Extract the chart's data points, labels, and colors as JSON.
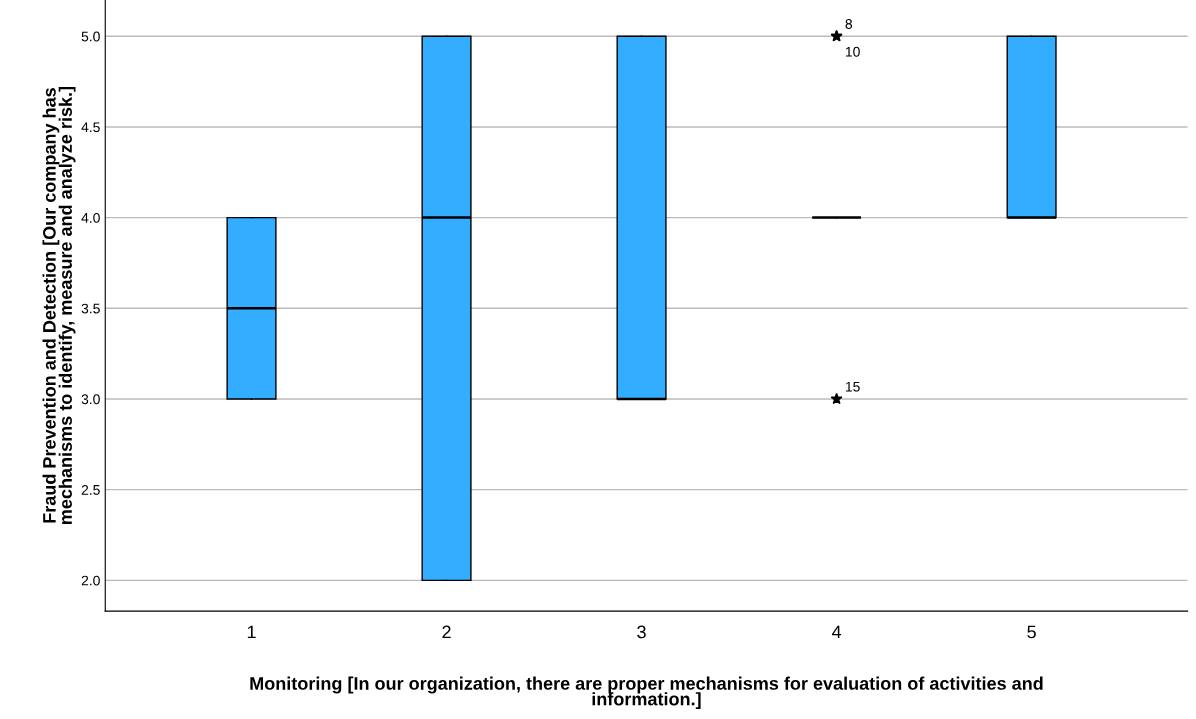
{
  "chart_data": {
    "type": "box",
    "xlabel": "Monitoring [In our organization, there are proper mechanisms for evaluation of activities and\ninformation.]",
    "ylabel": "Fraud Prevention and Detection [Our company has\nmechanisms to identify, measure and analyze risk.]",
    "categories": [
      "1",
      "2",
      "3",
      "4",
      "5"
    ],
    "color": "#33adff",
    "boxes": [
      {
        "low": 3,
        "q1": 3,
        "median": 3.5,
        "q3": 4,
        "high": 4
      },
      {
        "low": 2,
        "q1": 2,
        "median": 4,
        "q3": 5,
        "high": 5
      },
      {
        "low": 3,
        "q1": 3,
        "median": 3,
        "q3": 5,
        "high": 5
      },
      {
        "low": 4,
        "q1": 4,
        "median": 4,
        "q3": 4,
        "high": 4,
        "outliers": [
          5,
          5,
          3
        ]
      },
      {
        "low": 4,
        "q1": 4,
        "median": 4,
        "q3": 5,
        "high": 5
      }
    ],
    "marker": "star",
    "annotations": [
      "8",
      "10",
      "15"
    ],
    "ylim": [
      1.83,
      5.2
    ],
    "yticks": [
      {
        "value": 2,
        "label": "2.0"
      },
      {
        "value": 2.5,
        "label": "2.5"
      },
      {
        "value": 3,
        "label": "3.0"
      },
      {
        "value": 3.5,
        "label": "3.5"
      },
      {
        "value": 4,
        "label": "4.0"
      },
      {
        "value": 4.5,
        "label": "4.5"
      },
      {
        "value": 5,
        "label": "5.0"
      }
    ],
    "grid": "y"
  }
}
